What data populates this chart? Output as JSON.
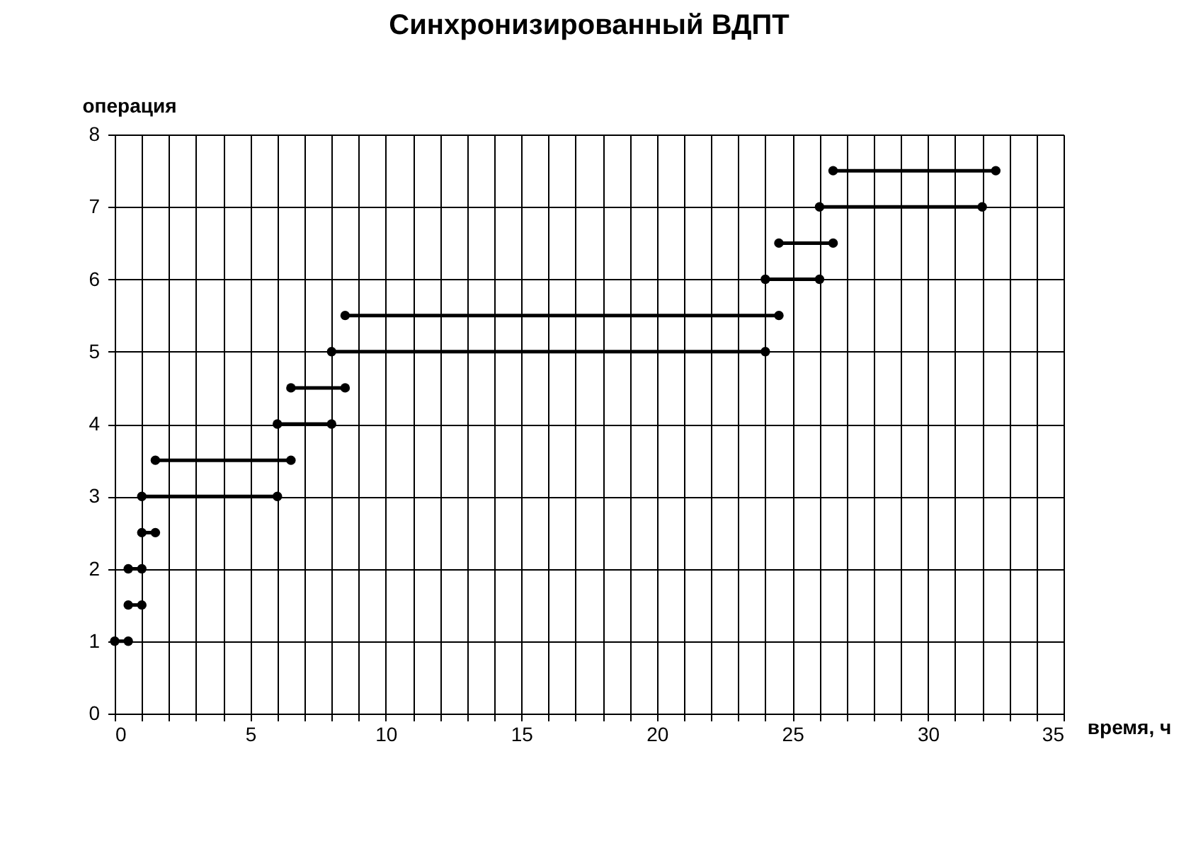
{
  "chart_data": {
    "type": "line",
    "title": "Синхронизированный ВДПТ",
    "xlabel": "время, ч",
    "ylabel": "операция",
    "xlim": [
      0,
      35
    ],
    "ylim": [
      0,
      8
    ],
    "xticks": [
      0,
      {
        "value": 1,
        "label": null
      },
      {
        "value": 2,
        "label": null
      },
      {
        "value": 3,
        "label": null
      },
      {
        "value": 4,
        "label": null
      },
      5,
      {
        "value": 6,
        "label": null
      },
      {
        "value": 7,
        "label": null
      },
      {
        "value": 8,
        "label": null
      },
      {
        "value": 9,
        "label": null
      },
      10,
      {
        "value": 11,
        "label": null
      },
      {
        "value": 12,
        "label": null
      },
      {
        "value": 13,
        "label": null
      },
      {
        "value": 14,
        "label": null
      },
      15,
      {
        "value": 16,
        "label": null
      },
      {
        "value": 17,
        "label": null
      },
      {
        "value": 18,
        "label": null
      },
      {
        "value": 19,
        "label": null
      },
      20,
      {
        "value": 21,
        "label": null
      },
      {
        "value": 22,
        "label": null
      },
      {
        "value": 23,
        "label": null
      },
      {
        "value": 24,
        "label": null
      },
      25,
      {
        "value": 26,
        "label": null
      },
      {
        "value": 27,
        "label": null
      },
      {
        "value": 28,
        "label": null
      },
      {
        "value": 29,
        "label": null
      },
      30,
      {
        "value": 31,
        "label": null
      },
      {
        "value": 32,
        "label": null
      },
      {
        "value": 33,
        "label": null
      },
      {
        "value": 34,
        "label": null
      },
      35
    ],
    "yticks": [
      0,
      1,
      2,
      3,
      4,
      5,
      6,
      7,
      8
    ],
    "grid": true,
    "legend": false,
    "marker": "circle",
    "line_style": "solid",
    "series": [
      {
        "color": "#000000",
        "x": [
          0,
          0.5
        ],
        "values": [
          1,
          1
        ]
      },
      {
        "color": "#000000",
        "x": [
          0.5,
          1
        ],
        "values": [
          1.5,
          1.5
        ]
      },
      {
        "color": "#000000",
        "x": [
          0.5,
          1
        ],
        "values": [
          2,
          2
        ]
      },
      {
        "color": "#000000",
        "x": [
          1,
          1.5
        ],
        "values": [
          2.5,
          2.5
        ]
      },
      {
        "color": "#000000",
        "x": [
          1,
          6
        ],
        "values": [
          3,
          3
        ]
      },
      {
        "color": "#000000",
        "x": [
          1.5,
          6.5
        ],
        "values": [
          3.5,
          3.5
        ]
      },
      {
        "color": "#000000",
        "x": [
          6,
          8
        ],
        "values": [
          4,
          4
        ]
      },
      {
        "color": "#000000",
        "x": [
          6.5,
          8.5
        ],
        "values": [
          4.5,
          4.5
        ]
      },
      {
        "color": "#000000",
        "x": [
          8,
          24
        ],
        "values": [
          5,
          5
        ]
      },
      {
        "color": "#000000",
        "x": [
          8.5,
          24.5
        ],
        "values": [
          5.5,
          5.5
        ]
      },
      {
        "color": "#000000",
        "x": [
          24,
          26
        ],
        "values": [
          6,
          6
        ]
      },
      {
        "color": "#000000",
        "x": [
          24.5,
          26.5
        ],
        "values": [
          6.5,
          6.5
        ]
      },
      {
        "color": "#000000",
        "x": [
          26,
          32
        ],
        "values": [
          7,
          7
        ]
      },
      {
        "color": "#000000",
        "x": [
          26.5,
          32.5
        ],
        "values": [
          7.5,
          7.5
        ]
      }
    ]
  }
}
